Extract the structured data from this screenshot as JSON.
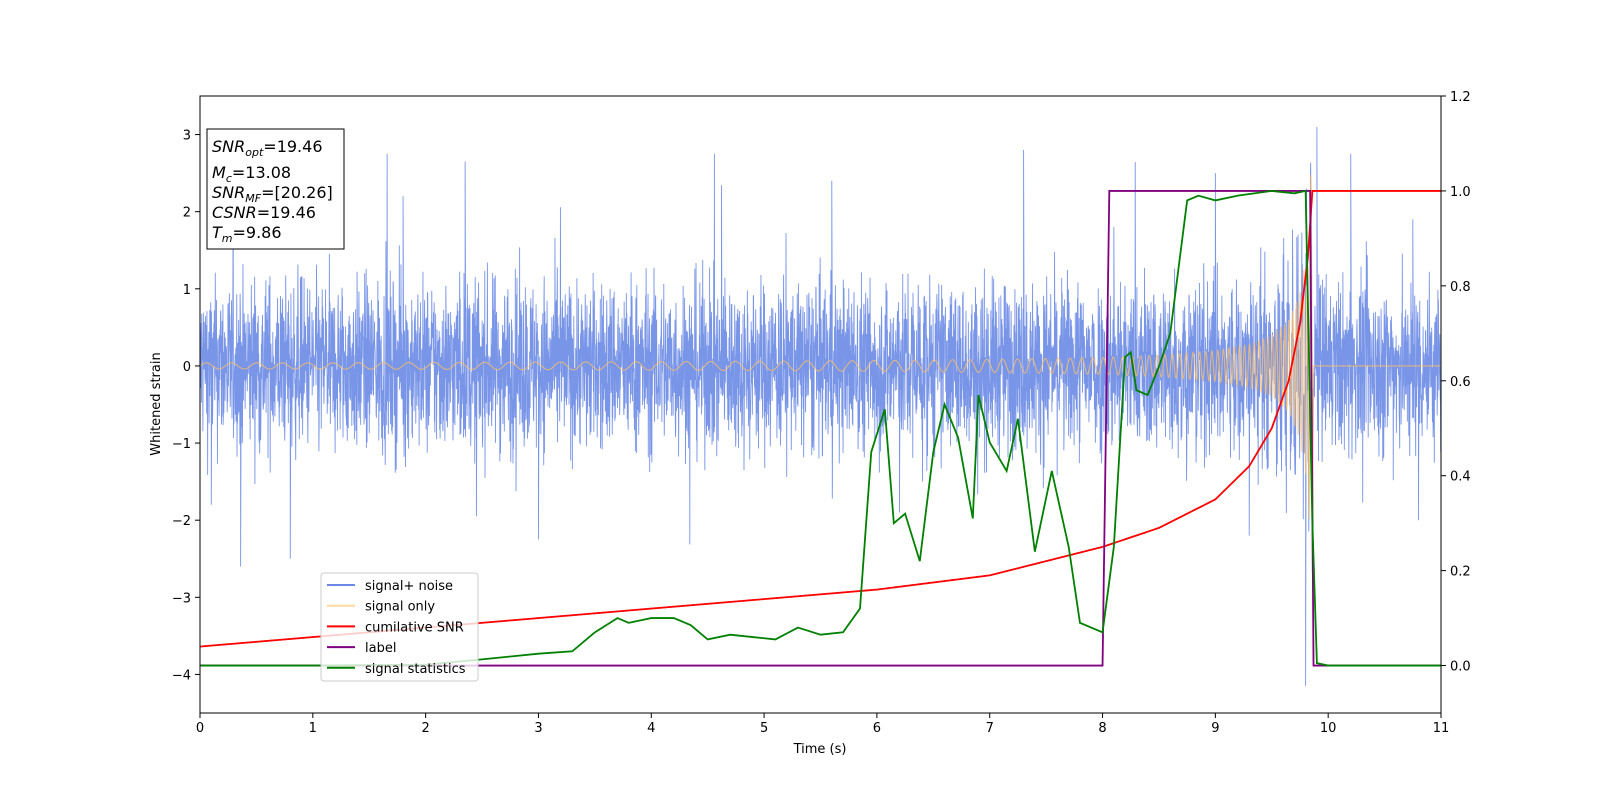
{
  "chart_data": {
    "type": "line",
    "xlabel": "Time (s)",
    "ylabel": "Whitened strain",
    "xlim": [
      0,
      11
    ],
    "ylim": [
      -4.5,
      3.5
    ],
    "y2lim": [
      -0.1,
      1.2
    ],
    "xticks": [
      "0",
      "1",
      "2",
      "3",
      "4",
      "5",
      "6",
      "7",
      "8",
      "9",
      "10",
      "11"
    ],
    "yticks": [
      "3",
      "2",
      "1",
      "0",
      "−1",
      "−2",
      "−3",
      "−4"
    ],
    "y2ticks": [
      "1.2",
      "1.0",
      "0.8",
      "0.6",
      "0.4",
      "0.2",
      "0.0"
    ],
    "grid": false,
    "legend_position": "lower-left",
    "series": [
      {
        "name": "signal+ noise",
        "color": "#6a8ae6",
        "axis": "left",
        "description_points": {
          "x": [
            0,
            11
          ],
          "y_band": [
            -1.3,
            1.3
          ],
          "peaks": [
            [
              0.1,
              -1.8
            ],
            [
              0.36,
              -2.6
            ],
            [
              0.8,
              -2.5
            ],
            [
              1.8,
              2.2
            ],
            [
              2.35,
              2.65
            ],
            [
              2.45,
              -1.95
            ],
            [
              3.0,
              -2.25
            ],
            [
              5.6,
              2.4
            ],
            [
              6.2,
              -1.9
            ],
            [
              7.3,
              2.8
            ],
            [
              8.1,
              1.8
            ],
            [
              9.0,
              2.5
            ],
            [
              9.3,
              -2.2
            ],
            [
              9.9,
              3.1
            ],
            [
              9.8,
              -4.15
            ],
            [
              10.2,
              2.75
            ],
            [
              10.75,
              1.9
            ],
            [
              10.8,
              -2.0
            ]
          ]
        }
      },
      {
        "name": "signal only",
        "color": "#ffbf66",
        "axis": "left",
        "x": [
          0,
          1,
          2,
          3,
          4,
          5,
          6,
          7,
          8,
          8.5,
          9,
          9.3,
          9.5,
          9.65,
          9.75,
          9.82,
          9.86,
          9.87,
          11
        ],
        "amplitude": [
          0.04,
          0.04,
          0.045,
          0.05,
          0.055,
          0.06,
          0.07,
          0.085,
          0.11,
          0.14,
          0.2,
          0.28,
          0.4,
          0.6,
          0.95,
          1.6,
          2.9,
          0,
          0
        ]
      },
      {
        "name": "cumilative SNR",
        "color": "#ff0000",
        "axis": "right",
        "x": [
          0,
          1,
          2,
          3,
          4,
          5,
          6,
          7,
          8,
          8.5,
          9,
          9.3,
          9.5,
          9.65,
          9.75,
          9.82,
          9.86,
          9.87,
          11
        ],
        "y": [
          0.04,
          0.06,
          0.08,
          0.1,
          0.12,
          0.14,
          0.16,
          0.19,
          0.25,
          0.29,
          0.35,
          0.42,
          0.5,
          0.6,
          0.72,
          0.86,
          1.0,
          1.0,
          1.0
        ]
      },
      {
        "name": "label",
        "color": "#800080",
        "axis": "right",
        "x": [
          0,
          8.0,
          8.06,
          9.84,
          9.87,
          11
        ],
        "y": [
          0,
          0,
          1,
          1,
          0,
          0
        ]
      },
      {
        "name": "signal statistics",
        "color": "#008000",
        "axis": "right",
        "x": [
          0,
          1,
          2,
          2.5,
          3,
          3.3,
          3.5,
          3.7,
          3.8,
          4.0,
          4.2,
          4.35,
          4.5,
          4.7,
          4.9,
          5.1,
          5.3,
          5.5,
          5.7,
          5.85,
          5.95,
          6.07,
          6.15,
          6.25,
          6.38,
          6.5,
          6.6,
          6.72,
          6.85,
          6.9,
          7.0,
          7.15,
          7.25,
          7.4,
          7.55,
          7.7,
          7.8,
          8.0,
          8.1,
          8.2,
          8.25,
          8.3,
          8.4,
          8.5,
          8.6,
          8.75,
          8.85,
          9.0,
          9.2,
          9.5,
          9.7,
          9.8,
          9.86,
          9.9,
          10.0,
          11
        ],
        "y": [
          0,
          0,
          0.002,
          0.013,
          0.025,
          0.03,
          0.07,
          0.1,
          0.09,
          0.1,
          0.1,
          0.085,
          0.055,
          0.065,
          0.06,
          0.055,
          0.08,
          0.065,
          0.07,
          0.12,
          0.45,
          0.54,
          0.3,
          0.32,
          0.22,
          0.45,
          0.55,
          0.48,
          0.31,
          0.57,
          0.47,
          0.41,
          0.52,
          0.24,
          0.41,
          0.25,
          0.09,
          0.07,
          0.25,
          0.65,
          0.66,
          0.58,
          0.57,
          0.63,
          0.7,
          0.98,
          0.99,
          0.98,
          0.99,
          1.0,
          0.995,
          1.0,
          0.3,
          0.005,
          0,
          0
        ]
      }
    ],
    "annotation_lines": [
      {
        "sym": "SNR",
        "sub": "opt",
        "value": "=19.46"
      },
      {
        "sym": "M",
        "sub": "c",
        "value": "=13.08"
      },
      {
        "sym": "SNR",
        "sub": "MF",
        "value": "=[20.26]"
      },
      {
        "sym": "CSNR",
        "sub": "",
        "value": "=19.46"
      },
      {
        "sym": "T",
        "sub": "m",
        "value": "=9.86"
      }
    ]
  }
}
